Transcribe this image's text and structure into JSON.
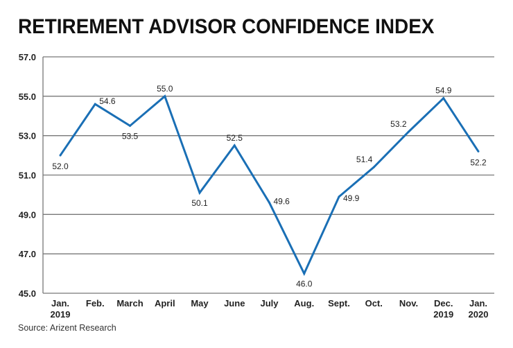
{
  "chart_data": {
    "type": "line",
    "title": "RETIREMENT ADVISOR CONFIDENCE INDEX",
    "source": "Source: Arizent Research",
    "categories": [
      [
        "Jan.",
        "2019"
      ],
      [
        "Feb."
      ],
      [
        "March"
      ],
      [
        "April"
      ],
      [
        "May"
      ],
      [
        "June"
      ],
      [
        "July"
      ],
      [
        "Aug."
      ],
      [
        "Sept."
      ],
      [
        "Oct."
      ],
      [
        "Nov."
      ],
      [
        "Dec.",
        "2019"
      ],
      [
        "Jan.",
        "2020"
      ]
    ],
    "values": [
      52.0,
      54.6,
      53.5,
      55.0,
      50.1,
      52.5,
      49.6,
      46.0,
      49.9,
      51.4,
      53.2,
      54.9,
      52.2
    ],
    "data_labels": [
      "52.0",
      "54.6",
      "53.5",
      "55.0",
      "50.1",
      "52.5",
      "49.6",
      "46.0",
      "49.9",
      "51.4",
      "53.2",
      "54.9",
      "52.2"
    ],
    "yticks": [
      "57.0",
      "55.0",
      "53.0",
      "51.0",
      "49.0",
      "47.0",
      "45.0"
    ],
    "ylim": [
      45,
      57
    ],
    "grid": true,
    "line_color": "#1a6fb5",
    "xlabel": "",
    "ylabel": ""
  }
}
